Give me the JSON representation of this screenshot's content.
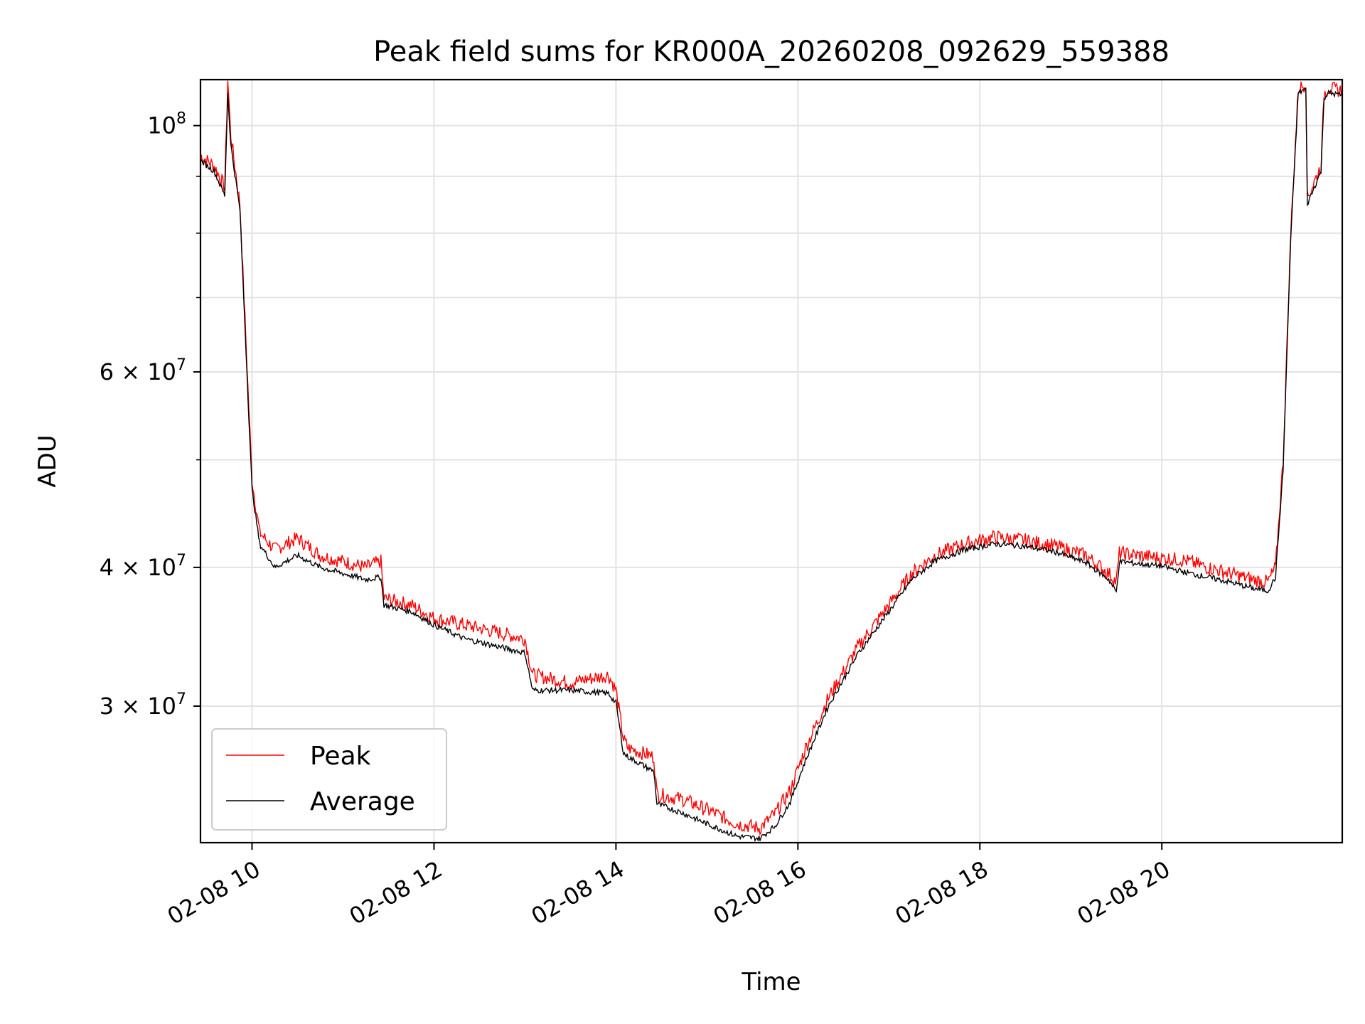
{
  "chart_data": {
    "type": "line",
    "title": "Peak field sums for KR000A_20260208_092629_559388",
    "xlabel": "Time",
    "ylabel": "ADU",
    "x_range": [
      "02-08 09:26",
      "02-08 21:59"
    ],
    "y_range": [
      22600000,
      110000000
    ],
    "y_scale": "log",
    "grid": true,
    "legend_position": "lower-left",
    "x_ticks": [
      "02-08 10",
      "02-08 12",
      "02-08 14",
      "02-08 16",
      "02-08 18",
      "02-08 20"
    ],
    "x_tick_times": [
      "02-08 10:00",
      "02-08 12:00",
      "02-08 14:00",
      "02-08 16:00",
      "02-08 18:00",
      "02-08 20:00"
    ],
    "y_major_ticks": [
      {
        "value": 100000000,
        "base": "10",
        "exp": "8"
      },
      {
        "value": 60000000,
        "base": "6 × 10",
        "exp": "7"
      },
      {
        "value": 40000000,
        "base": "4 × 10",
        "exp": "7"
      },
      {
        "value": 30000000,
        "base": "3 × 10",
        "exp": "7"
      }
    ],
    "y_minor_ticks": [
      90000000,
      80000000,
      70000000,
      50000000
    ],
    "series": [
      {
        "name": "Peak",
        "color": "#ff0000",
        "x": [
          "02-08 09:26",
          "02-08 09:35",
          "02-08 09:42",
          "02-08 09:44",
          "02-08 09:46",
          "02-08 09:52",
          "02-08 10:00",
          "02-08 10:05",
          "02-08 10:15",
          "02-08 10:30",
          "02-08 10:45",
          "02-08 11:00",
          "02-08 11:15",
          "02-08 11:25",
          "02-08 11:27",
          "02-08 11:45",
          "02-08 12:00",
          "02-08 12:20",
          "02-08 12:40",
          "02-08 13:00",
          "02-08 13:05",
          "02-08 13:30",
          "02-08 13:55",
          "02-08 14:00",
          "02-08 14:05",
          "02-08 14:08",
          "02-08 14:25",
          "02-08 14:27",
          "02-08 14:45",
          "02-08 15:00",
          "02-08 15:20",
          "02-08 15:35",
          "02-08 15:45",
          "02-08 15:55",
          "02-08 16:05",
          "02-08 16:20",
          "02-08 16:40",
          "02-08 17:00",
          "02-08 17:15",
          "02-08 17:30",
          "02-08 17:50",
          "02-08 18:10",
          "02-08 18:30",
          "02-08 18:50",
          "02-08 19:10",
          "02-08 19:25",
          "02-08 19:30",
          "02-08 19:32",
          "02-08 19:45",
          "02-08 20:00",
          "02-08 20:15",
          "02-08 20:30",
          "02-08 20:45",
          "02-08 21:00",
          "02-08 21:10",
          "02-08 21:15",
          "02-08 21:20",
          "02-08 21:25",
          "02-08 21:30",
          "02-08 21:35",
          "02-08 21:36",
          "02-08 21:45",
          "02-08 21:47",
          "02-08 21:50",
          "02-08 21:59"
        ],
        "values": [
          94000000,
          92000000,
          88000000,
          110000000,
          98000000,
          85000000,
          48000000,
          43000000,
          41500000,
          42500000,
          41000000,
          40500000,
          40000000,
          40500000,
          37500000,
          37000000,
          36000000,
          35500000,
          35000000,
          34500000,
          32000000,
          31500000,
          32000000,
          31000000,
          28000000,
          27500000,
          27000000,
          25000000,
          24700000,
          24200000,
          23500000,
          23300000,
          24000000,
          25200000,
          27500000,
          30500000,
          34000000,
          37000000,
          39500000,
          41000000,
          42000000,
          42600000,
          42300000,
          41800000,
          41000000,
          39500000,
          38800000,
          41200000,
          41000000,
          40800000,
          40600000,
          40000000,
          39500000,
          39000000,
          38800000,
          40000000,
          50000000,
          80000000,
          108000000,
          109000000,
          86000000,
          92000000,
          107000000,
          108000000,
          107500000
        ]
      },
      {
        "name": "Average",
        "color": "#000000",
        "x": [
          "02-08 09:26",
          "02-08 09:35",
          "02-08 09:42",
          "02-08 09:44",
          "02-08 09:46",
          "02-08 09:52",
          "02-08 10:00",
          "02-08 10:05",
          "02-08 10:15",
          "02-08 10:30",
          "02-08 10:45",
          "02-08 11:00",
          "02-08 11:15",
          "02-08 11:25",
          "02-08 11:27",
          "02-08 11:45",
          "02-08 12:00",
          "02-08 12:20",
          "02-08 12:40",
          "02-08 13:00",
          "02-08 13:05",
          "02-08 13:30",
          "02-08 13:55",
          "02-08 14:00",
          "02-08 14:05",
          "02-08 14:08",
          "02-08 14:25",
          "02-08 14:27",
          "02-08 14:45",
          "02-08 15:00",
          "02-08 15:20",
          "02-08 15:35",
          "02-08 15:45",
          "02-08 15:55",
          "02-08 16:05",
          "02-08 16:20",
          "02-08 16:40",
          "02-08 17:00",
          "02-08 17:15",
          "02-08 17:30",
          "02-08 17:50",
          "02-08 18:10",
          "02-08 18:30",
          "02-08 18:50",
          "02-08 19:10",
          "02-08 19:25",
          "02-08 19:30",
          "02-08 19:32",
          "02-08 19:45",
          "02-08 20:00",
          "02-08 20:15",
          "02-08 20:30",
          "02-08 20:45",
          "02-08 21:00",
          "02-08 21:10",
          "02-08 21:15",
          "02-08 21:20",
          "02-08 21:25",
          "02-08 21:30",
          "02-08 21:35",
          "02-08 21:36",
          "02-08 21:45",
          "02-08 21:47",
          "02-08 21:50",
          "02-08 21:59"
        ],
        "values": [
          93000000,
          91000000,
          86500000,
          107000000,
          96000000,
          84000000,
          47000000,
          42000000,
          40000000,
          41000000,
          40000000,
          39500000,
          39000000,
          39200000,
          37000000,
          36500000,
          35500000,
          34500000,
          34000000,
          33500000,
          31000000,
          31000000,
          30800000,
          30200000,
          27200000,
          27000000,
          26200000,
          24500000,
          24000000,
          23500000,
          22900000,
          22800000,
          23400000,
          24600000,
          26800000,
          30000000,
          33500000,
          36500000,
          39000000,
          40500000,
          41500000,
          42000000,
          41800000,
          41300000,
          40400000,
          39000000,
          38000000,
          40500000,
          40300000,
          40100000,
          39600000,
          39200000,
          38800000,
          38300000,
          38100000,
          39200000,
          49000000,
          79000000,
          107000000,
          108000000,
          85000000,
          91000000,
          106000000,
          107000000,
          106500000
        ]
      }
    ]
  }
}
